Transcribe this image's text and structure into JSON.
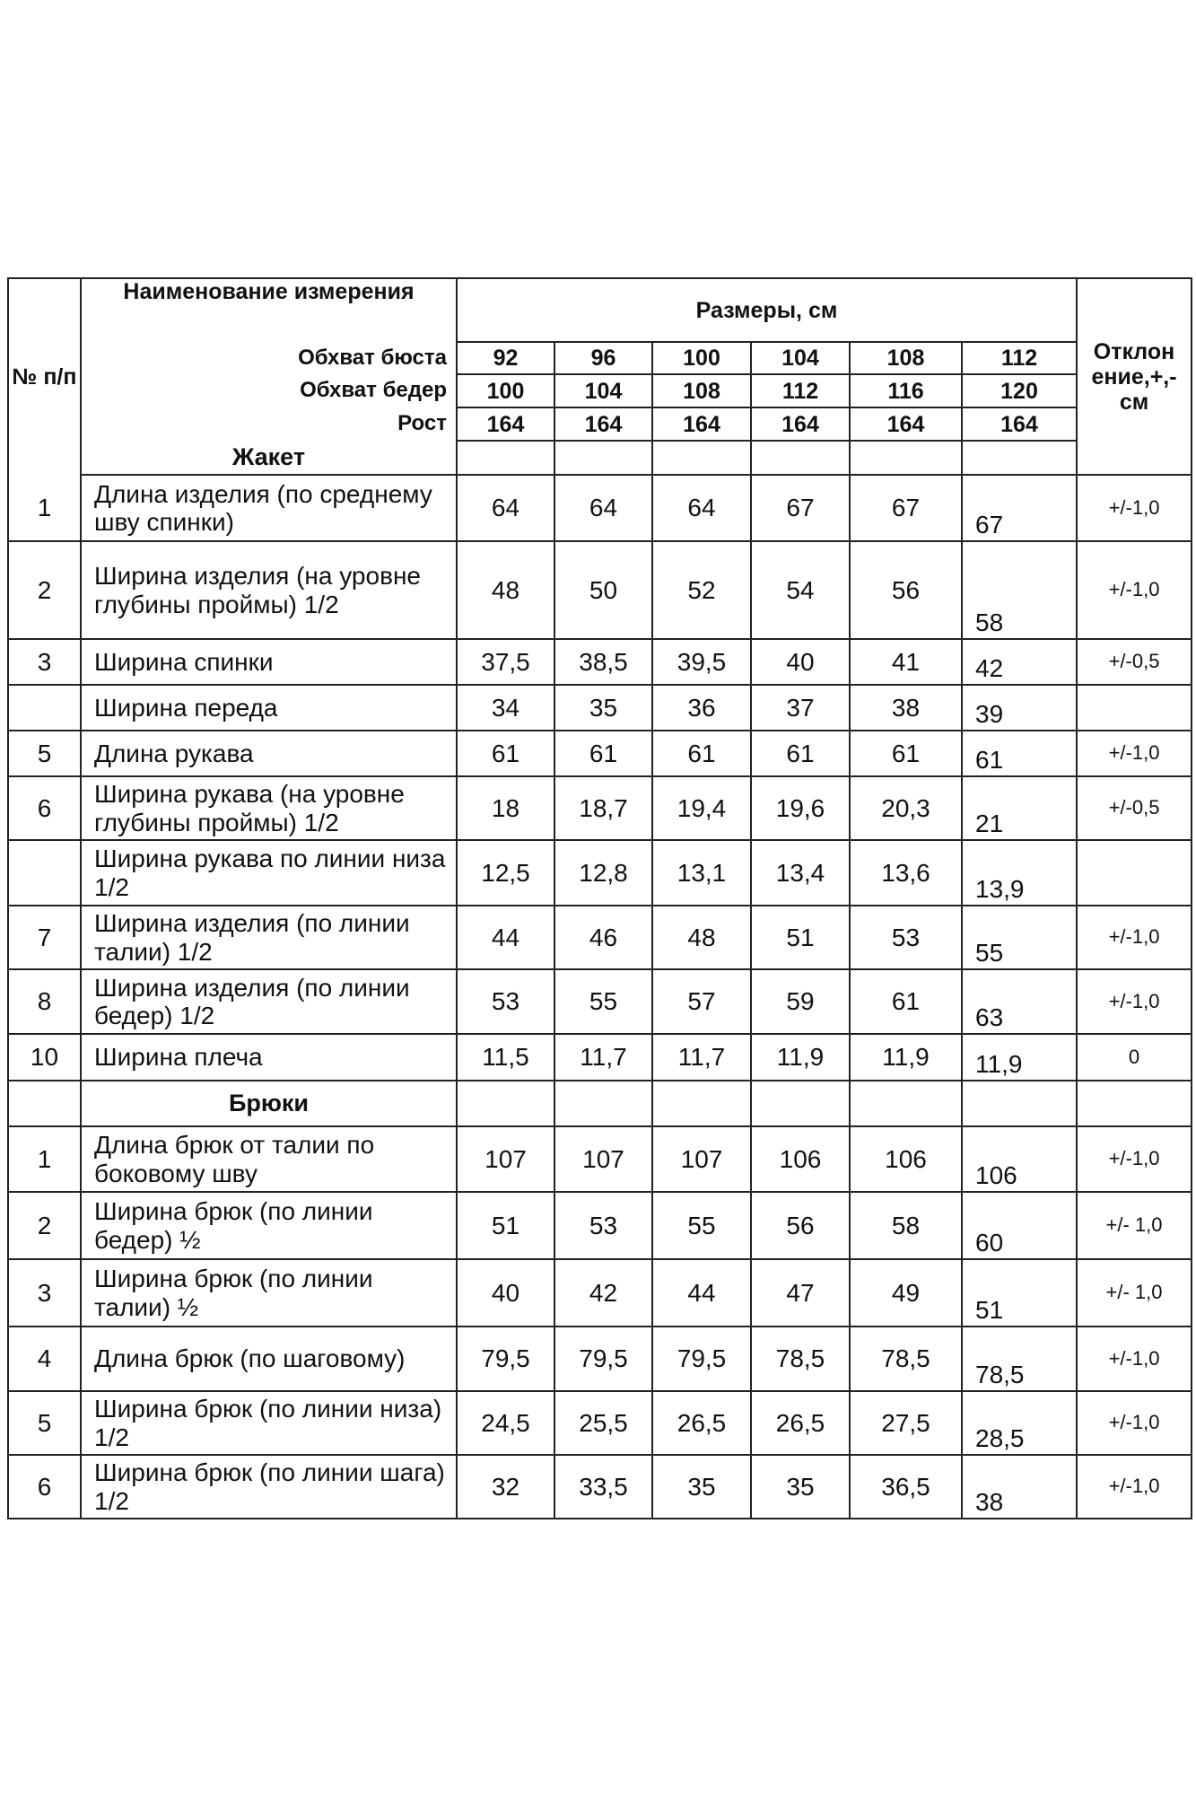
{
  "header": {
    "num": "№ п/п",
    "name": "Наименование измерения",
    "sizes": "Размеры, см",
    "deviation": "Отклон ение,+,- см",
    "params": [
      {
        "label": "Обхват бюста",
        "values": [
          "92",
          "96",
          "100",
          "104",
          "108",
          "112"
        ]
      },
      {
        "label": "Обхват бедер",
        "values": [
          "100",
          "104",
          "108",
          "112",
          "116",
          "120"
        ]
      },
      {
        "label": "Рост",
        "values": [
          "164",
          "164",
          "164",
          "164",
          "164",
          "164"
        ]
      }
    ]
  },
  "sections": [
    {
      "title": "Жакет",
      "rows": [
        {
          "num": "1",
          "name": "Длина изделия (по среднему шву спинки)",
          "values": [
            "64",
            "64",
            "64",
            "67",
            "67",
            "67"
          ],
          "dev": "+/-1,0"
        },
        {
          "num": "2",
          "name": "Ширина изделия (на уровне глубины проймы) 1/2",
          "values": [
            "48",
            "50",
            "52",
            "54",
            "56",
            "58"
          ],
          "dev": "+/-1,0"
        },
        {
          "num": "3",
          "name": "Ширина спинки",
          "values": [
            "37,5",
            "38,5",
            "39,5",
            "40",
            "41",
            "42"
          ],
          "dev": "+/-0,5"
        },
        {
          "num": "",
          "name": "Ширина переда",
          "values": [
            "34",
            "35",
            "36",
            "37",
            "38",
            "39"
          ],
          "dev": ""
        },
        {
          "num": "5",
          "name": "Длина рукава",
          "values": [
            "61",
            "61",
            "61",
            "61",
            "61",
            "61"
          ],
          "dev": "+/-1,0"
        },
        {
          "num": "6",
          "name": "Ширина рукава (на уровне глубины проймы) 1/2",
          "values": [
            "18",
            "18,7",
            "19,4",
            "19,6",
            "20,3",
            "21"
          ],
          "dev": "+/-0,5"
        },
        {
          "num": "",
          "name": "Ширина рукава по линии низа 1/2",
          "values": [
            "12,5",
            "12,8",
            "13,1",
            "13,4",
            "13,6",
            "13,9"
          ],
          "dev": ""
        },
        {
          "num": "7",
          "name": "Ширина изделия (по линии талии) 1/2",
          "values": [
            "44",
            "46",
            "48",
            "51",
            "53",
            "55"
          ],
          "dev": "+/-1,0"
        },
        {
          "num": "8",
          "name": "Ширина изделия (по линии бедер) 1/2",
          "values": [
            "53",
            "55",
            "57",
            "59",
            "61",
            "63"
          ],
          "dev": "+/-1,0"
        },
        {
          "num": "10",
          "name": "Ширина плеча",
          "values": [
            "11,5",
            "11,7",
            "11,7",
            "11,9",
            "11,9",
            "11,9"
          ],
          "dev": "0"
        }
      ]
    },
    {
      "title": "Брюки",
      "rows": [
        {
          "num": "1",
          "name": "Длина брюк от талии по боковому шву",
          "values": [
            "107",
            "107",
            "107",
            "106",
            "106",
            "106"
          ],
          "dev": "+/-1,0"
        },
        {
          "num": "2",
          "name": "Ширина брюк (по линии бедер) ½",
          "values": [
            "51",
            "53",
            "55",
            "56",
            "58",
            "60"
          ],
          "dev": "+/- 1,0"
        },
        {
          "num": "3",
          "name": "Ширина брюк (по линии талии) ½",
          "values": [
            "40",
            "42",
            "44",
            "47",
            "49",
            "51"
          ],
          "dev": "+/- 1,0"
        },
        {
          "num": "4",
          "name": "Длина брюк (по шаговому)",
          "values": [
            "79,5",
            "79,5",
            "79,5",
            "78,5",
            "78,5",
            "78,5"
          ],
          "dev": "+/-1,0"
        },
        {
          "num": "5",
          "name": " Ширина брюк (по линии низа) 1/2",
          "values": [
            "24,5",
            "25,5",
            "26,5",
            "26,5",
            "27,5",
            "28,5"
          ],
          "dev": "+/-1,0"
        },
        {
          "num": "6",
          "name": "Ширина брюк (по линии шага) 1/2",
          "values": [
            "32",
            "33,5",
            "35",
            "35",
            "36,5",
            "38"
          ],
          "dev": "+/-1,0"
        }
      ]
    }
  ]
}
